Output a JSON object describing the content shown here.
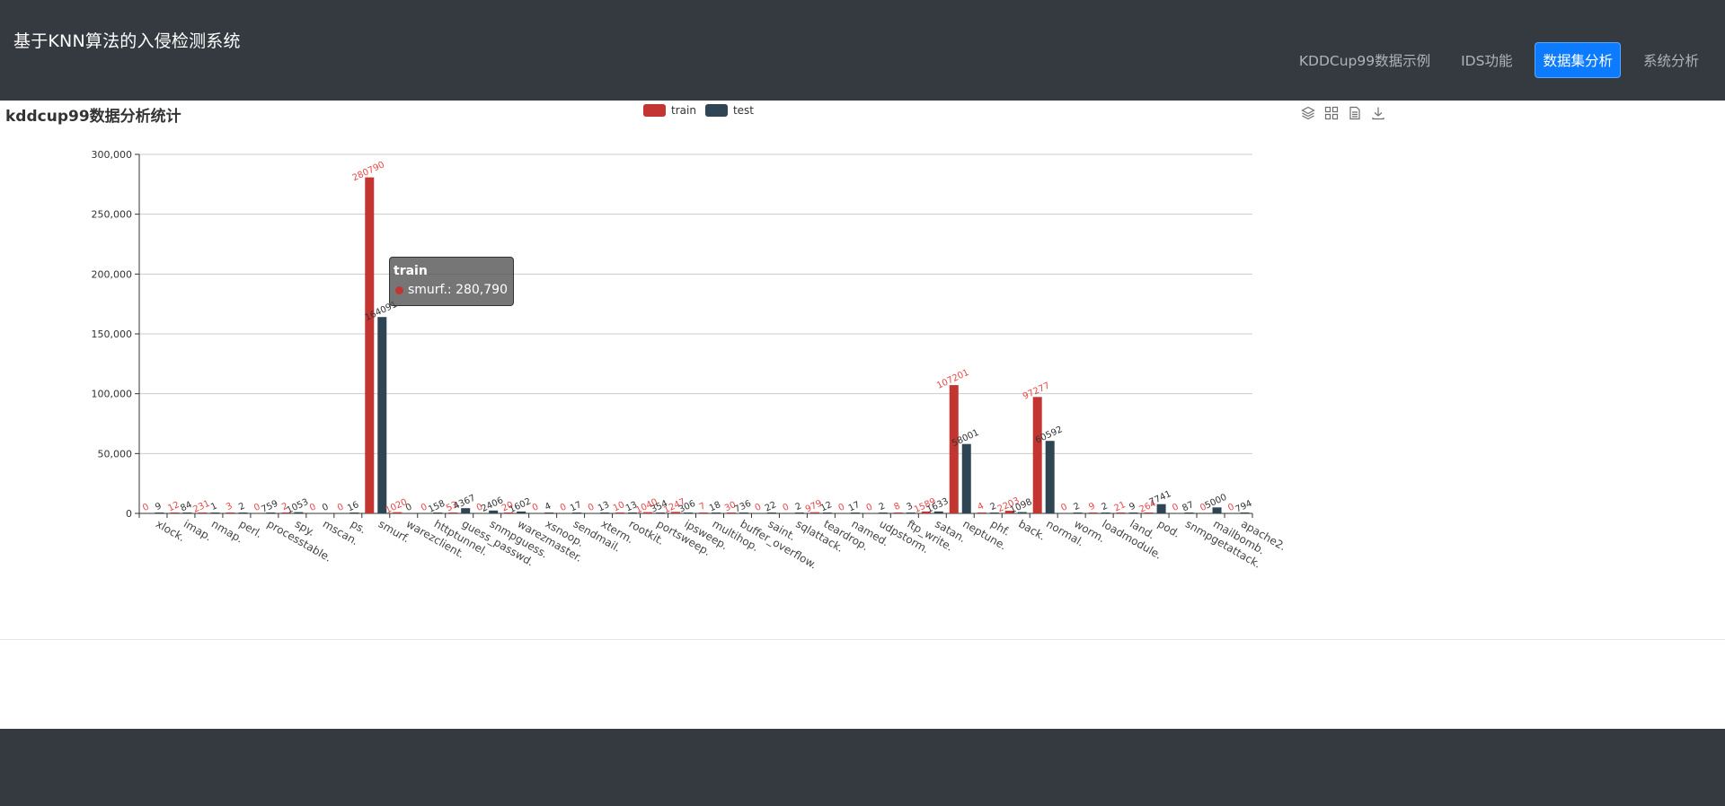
{
  "header": {
    "brand": "基于KNN算法的入侵检测系统",
    "nav": [
      {
        "label": "KDDCup99数据示例",
        "active": false
      },
      {
        "label": "IDS功能",
        "active": false
      },
      {
        "label": "数据集分析",
        "active": true
      },
      {
        "label": "系统分析",
        "active": false
      }
    ]
  },
  "page": {
    "title": "kddcup99数据分析统计"
  },
  "toolbox": [
    "cube-icon",
    "grid-icon",
    "document-icon",
    "download-icon"
  ],
  "tooltip": {
    "series": "train",
    "text": "smurf.: 280,790"
  },
  "chart_data": {
    "type": "bar",
    "ylim": [
      0,
      300000
    ],
    "yticks": [
      "0",
      "50,000",
      "100,000",
      "150,000",
      "200,000",
      "250,000",
      "300,000"
    ],
    "legend_position": "top-center",
    "grid": true,
    "categories": [
      "xlock.",
      "imap.",
      "nmap.",
      "perl.",
      "processtable.",
      "spy.",
      "mscan.",
      "ps.",
      "smurf.",
      "warezclient.",
      "httptunnel.",
      "guess_passwd.",
      "snmpguess.",
      "warezmaster.",
      "xsnoop.",
      "sendmail.",
      "xterm.",
      "rootkit.",
      "portsweep.",
      "ipsweep.",
      "multihop.",
      "buffer_overflow.",
      "saint.",
      "sqlattack.",
      "teardrop.",
      "named.",
      "udpstorm.",
      "ftp_write.",
      "satan.",
      "neptune.",
      "phf.",
      "back.",
      "normal.",
      "worm.",
      "loadmodule.",
      "land.",
      "pod.",
      "snmpgetattack.",
      "mailbomb.",
      "apache2."
    ],
    "series": [
      {
        "name": "train",
        "color": "#c23531",
        "values": [
          0,
          12,
          231,
          3,
          0,
          2,
          0,
          0,
          280790,
          1020,
          0,
          53,
          0,
          20,
          0,
          0,
          0,
          10,
          1040,
          1247,
          7,
          30,
          0,
          0,
          979,
          0,
          0,
          8,
          1589,
          107201,
          4,
          2203,
          97277,
          0,
          9,
          21,
          264,
          0,
          0,
          0
        ]
      },
      {
        "name": "test",
        "color": "#2f4554",
        "values": [
          9,
          84,
          1,
          2,
          759,
          1053,
          0,
          16,
          164091,
          0,
          158,
          4367,
          2406,
          1602,
          4,
          17,
          13,
          13,
          354,
          306,
          18,
          736,
          22,
          2,
          12,
          17,
          2,
          3,
          1633,
          58001,
          2,
          1098,
          60592,
          2,
          2,
          9,
          7741,
          87,
          5000,
          794
        ]
      }
    ]
  }
}
